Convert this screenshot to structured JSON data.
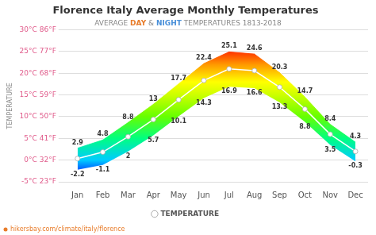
{
  "chart_data": {
    "type": "line",
    "title": "Florence Italy Average Monthly Temperatures",
    "subtitle": [
      {
        "text": "AVERAGE ",
        "color": "#888888"
      },
      {
        "text": "DAY",
        "color": "#e87c2a"
      },
      {
        "text": " & ",
        "color": "#888888"
      },
      {
        "text": "NIGHT",
        "color": "#4a90d9"
      },
      {
        "text": " TEMPERATURES 1813-2018",
        "color": "#888888"
      }
    ],
    "categories": [
      "Jan",
      "Feb",
      "Mar",
      "Apr",
      "May",
      "Jun",
      "Jul",
      "Aug",
      "Sep",
      "Oct",
      "Nov",
      "Dec"
    ],
    "series": [
      {
        "name": "TEMPERATURE",
        "color": "#ffffff",
        "marker": "circle",
        "line_style": "solid",
        "values": [
          0.35,
          1.85,
          5.4,
          9.35,
          13.9,
          18.35,
          21,
          20.6,
          16.8,
          11.75,
          5.95,
          2
        ]
      }
    ],
    "range": {
      "high": [
        2.9,
        4.8,
        8.8,
        13,
        17.7,
        22.4,
        25.1,
        24.6,
        20.3,
        14.7,
        8.4,
        4.3
      ],
      "low": [
        -2.2,
        -1.1,
        2,
        5.7,
        10.1,
        14.3,
        16.9,
        16.6,
        13.3,
        8.8,
        3.5,
        -0.3
      ],
      "data_labels": true,
      "color_stops": [
        {
          "value": -5,
          "color": "#0000cc"
        },
        {
          "value": -2,
          "color": "#0066ff"
        },
        {
          "value": 0,
          "color": "#00ccff"
        },
        {
          "value": 5,
          "color": "#00ff80"
        },
        {
          "value": 10,
          "color": "#66ff00"
        },
        {
          "value": 15,
          "color": "#ccff00"
        },
        {
          "value": 18,
          "color": "#ffff00"
        },
        {
          "value": 22,
          "color": "#ff9900"
        },
        {
          "value": 25,
          "color": "#ff3300"
        },
        {
          "value": 30,
          "color": "#e60000"
        }
      ]
    },
    "ylabel": "TEMPERATURE",
    "ylim": [
      -5,
      30
    ],
    "yticks": [
      {
        "value": -5,
        "label": "-5°C 23°F"
      },
      {
        "value": 0,
        "label": "0°C 32°F"
      },
      {
        "value": 5,
        "label": "5°C 41°F"
      },
      {
        "value": 10,
        "label": "10°C 50°F"
      },
      {
        "value": 15,
        "label": "15°C 59°F"
      },
      {
        "value": 20,
        "label": "20°C 68°F"
      },
      {
        "value": 25,
        "label": "25°C 77°F"
      },
      {
        "value": 30,
        "label": "30°C 86°F"
      }
    ],
    "grid": "y",
    "legend": "bottom",
    "annotations": [
      {
        "text": "hikersbay.com/climate/italy/florence",
        "color": "#e87c2a"
      }
    ]
  }
}
